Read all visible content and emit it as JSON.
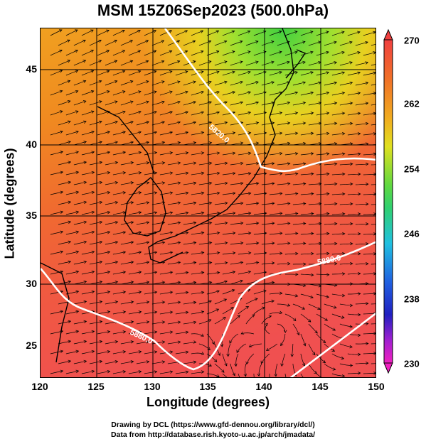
{
  "title": "MSM 15Z06Sep2023 (500.0hPa)",
  "axes": {
    "xlabel": "Longitude (degrees)",
    "ylabel": "Latitude  (degrees)",
    "xticks": [
      "120",
      "125",
      "130",
      "135",
      "140",
      "145",
      "150"
    ],
    "yticks": [
      "45",
      "40",
      "35",
      "30",
      "25"
    ],
    "xlim": [
      120,
      150
    ],
    "ylim": [
      22.5,
      47.5
    ]
  },
  "colorbar": {
    "labels": [
      "270",
      "262",
      "254",
      "246",
      "238",
      "230"
    ],
    "range": [
      230,
      270
    ],
    "colors": {
      "high": "#f05050",
      "mid_high": "#f08020",
      "mid": "#e0e020",
      "green": "#30d040",
      "cyan": "#20c0e0",
      "blue": "#2020d0",
      "low": "#e020c0"
    }
  },
  "contours": {
    "label_a": "5880.0",
    "label_b": "5820.0",
    "label_c": "5880.0"
  },
  "credits": {
    "line1": "Drawing by DCL (https://www.gfd-dennou.org/library/dcl/)",
    "line2": "Data from http://database.rish.kyoto-u.ac.jp/arch/jmadata/"
  }
}
